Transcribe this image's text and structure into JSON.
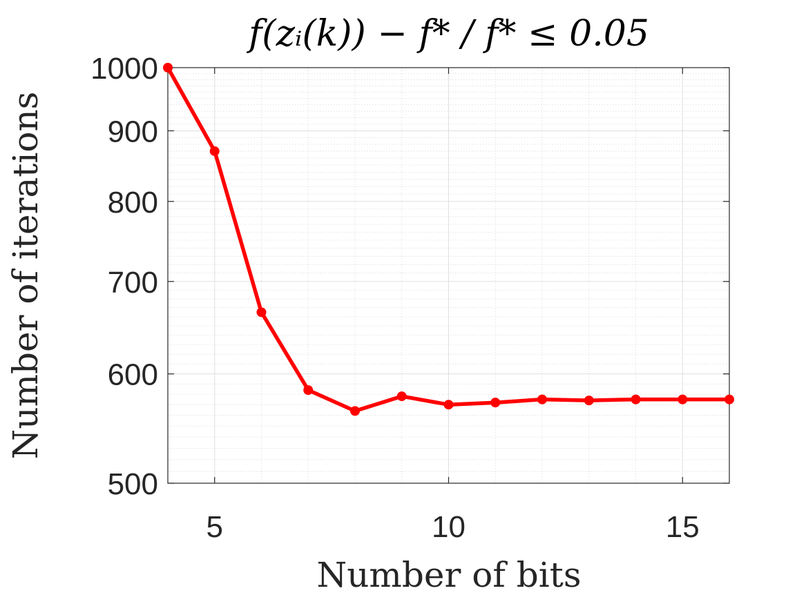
{
  "chart_data": {
    "type": "line",
    "title": "f(zᵢ(k)) − f* / f* ≤ 0.05",
    "xlabel": "Number of bits",
    "ylabel": "Number of iterations",
    "xlim": [
      4,
      16
    ],
    "ylim": [
      500,
      1000
    ],
    "yscale": "log",
    "grid": true,
    "minor_grid": true,
    "x_ticks": [
      5,
      10,
      15
    ],
    "y_ticks": [
      500,
      600,
      700,
      800,
      900,
      1000
    ],
    "series": [
      {
        "color": "#ff0000",
        "marker": "circle",
        "x": [
          4,
          5,
          6,
          7,
          8,
          9,
          10,
          11,
          12,
          13,
          14,
          15,
          16
        ],
        "y": [
          1000,
          870,
          665,
          584,
          564,
          578,
          570,
          572,
          575,
          574,
          575,
          575,
          575
        ]
      }
    ]
  }
}
